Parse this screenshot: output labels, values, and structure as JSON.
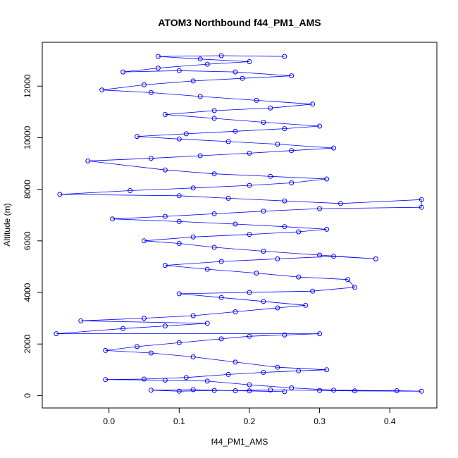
{
  "chart_data": {
    "type": "scatter",
    "title": "ATOM3 Northbound f44_PM1_AMS",
    "xlabel": "f44_PM1_AMS",
    "ylabel": "Altitude (m)",
    "xlim": [
      -0.095,
      0.467
    ],
    "ylim": [
      -480,
      13700
    ],
    "x_ticks": [
      "0.0",
      "0.1",
      "0.2",
      "0.3",
      "0.4"
    ],
    "x_tick_values": [
      0,
      0.1,
      0.2,
      0.3,
      0.4
    ],
    "y_ticks": [
      "0",
      "2000",
      "4000",
      "6000",
      "8000",
      "10000",
      "12000"
    ],
    "y_tick_values": [
      0,
      2000,
      4000,
      6000,
      8000,
      10000,
      12000
    ],
    "grid": false,
    "legend": "none",
    "colors": {
      "series": "#0000ff",
      "axis": "#000000",
      "background": "#ffffff"
    },
    "series": [
      {
        "points": [
          [
            0.25,
            150
          ],
          [
            0.2,
            180
          ],
          [
            0.15,
            200
          ],
          [
            0.1,
            170
          ],
          [
            0.06,
            210
          ],
          [
            0.12,
            230
          ],
          [
            0.18,
            190
          ],
          [
            0.23,
            220
          ],
          [
            0.3,
            200
          ],
          [
            0.35,
            180
          ],
          [
            0.445,
            170
          ],
          [
            0.41,
            190
          ],
          [
            0.32,
            210
          ],
          [
            0.26,
            300
          ],
          [
            0.2,
            420
          ],
          [
            0.14,
            560
          ],
          [
            0.08,
            600
          ],
          [
            -0.005,
            620
          ],
          [
            0.05,
            640
          ],
          [
            0.11,
            700
          ],
          [
            0.17,
            820
          ],
          [
            0.22,
            900
          ],
          [
            0.27,
            960
          ],
          [
            0.31,
            1000
          ],
          [
            0.24,
            1100
          ],
          [
            0.18,
            1300
          ],
          [
            0.12,
            1500
          ],
          [
            0.06,
            1650
          ],
          [
            -0.005,
            1750
          ],
          [
            0.04,
            1900
          ],
          [
            0.1,
            2050
          ],
          [
            0.16,
            2200
          ],
          [
            0.2,
            2300
          ],
          [
            0.25,
            2350
          ],
          [
            0.3,
            2400
          ],
          [
            -0.075,
            2400
          ],
          [
            0.02,
            2600
          ],
          [
            0.08,
            2700
          ],
          [
            0.14,
            2800
          ],
          [
            -0.04,
            2900
          ],
          [
            0.05,
            3000
          ],
          [
            0.12,
            3100
          ],
          [
            0.18,
            3250
          ],
          [
            0.24,
            3400
          ],
          [
            0.28,
            3500
          ],
          [
            0.22,
            3650
          ],
          [
            0.16,
            3800
          ],
          [
            0.1,
            3950
          ],
          [
            0.2,
            4000
          ],
          [
            0.29,
            4050
          ],
          [
            0.35,
            4200
          ],
          [
            0.34,
            4500
          ],
          [
            0.27,
            4600
          ],
          [
            0.21,
            4750
          ],
          [
            0.14,
            4900
          ],
          [
            0.08,
            5050
          ],
          [
            0.16,
            5200
          ],
          [
            0.24,
            5300
          ],
          [
            0.32,
            5400
          ],
          [
            0.38,
            5300
          ],
          [
            0.3,
            5450
          ],
          [
            0.22,
            5600
          ],
          [
            0.15,
            5750
          ],
          [
            0.1,
            5900
          ],
          [
            0.05,
            6000
          ],
          [
            0.12,
            6150
          ],
          [
            0.2,
            6250
          ],
          [
            0.27,
            6350
          ],
          [
            0.31,
            6450
          ],
          [
            0.25,
            6550
          ],
          [
            0.18,
            6650
          ],
          [
            0.1,
            6750
          ],
          [
            0.005,
            6850
          ],
          [
            0.08,
            6950
          ],
          [
            0.15,
            7050
          ],
          [
            0.22,
            7150
          ],
          [
            0.3,
            7250
          ],
          [
            0.445,
            7300
          ],
          [
            0.445,
            7600
          ],
          [
            0.33,
            7450
          ],
          [
            0.25,
            7550
          ],
          [
            0.17,
            7650
          ],
          [
            0.1,
            7750
          ],
          [
            -0.07,
            7800
          ],
          [
            0.03,
            7950
          ],
          [
            0.12,
            8050
          ],
          [
            0.2,
            8150
          ],
          [
            0.26,
            8250
          ],
          [
            0.31,
            8400
          ],
          [
            0.23,
            8500
          ],
          [
            0.15,
            8600
          ],
          [
            0.08,
            8750
          ],
          [
            -0.03,
            9100
          ],
          [
            0.06,
            9200
          ],
          [
            0.13,
            9300
          ],
          [
            0.2,
            9400
          ],
          [
            0.26,
            9500
          ],
          [
            0.32,
            9600
          ],
          [
            0.24,
            9750
          ],
          [
            0.17,
            9850
          ],
          [
            0.1,
            9950
          ],
          [
            0.04,
            10050
          ],
          [
            0.11,
            10150
          ],
          [
            0.18,
            10250
          ],
          [
            0.25,
            10350
          ],
          [
            0.3,
            10450
          ],
          [
            0.22,
            10600
          ],
          [
            0.15,
            10750
          ],
          [
            0.08,
            10900
          ],
          [
            0.15,
            11050
          ],
          [
            0.23,
            11150
          ],
          [
            0.29,
            11300
          ],
          [
            0.21,
            11450
          ],
          [
            0.13,
            11600
          ],
          [
            0.06,
            11750
          ],
          [
            -0.01,
            11850
          ],
          [
            0.05,
            12050
          ],
          [
            0.12,
            12200
          ],
          [
            0.19,
            12300
          ],
          [
            0.26,
            12400
          ],
          [
            0.18,
            12550
          ],
          [
            0.1,
            12600
          ],
          [
            0.02,
            12550
          ],
          [
            0.07,
            12700
          ],
          [
            0.14,
            12850
          ],
          [
            0.2,
            12950
          ],
          [
            0.13,
            13050
          ],
          [
            0.07,
            13150
          ],
          [
            0.16,
            13180
          ],
          [
            0.25,
            13150
          ]
        ]
      }
    ]
  }
}
